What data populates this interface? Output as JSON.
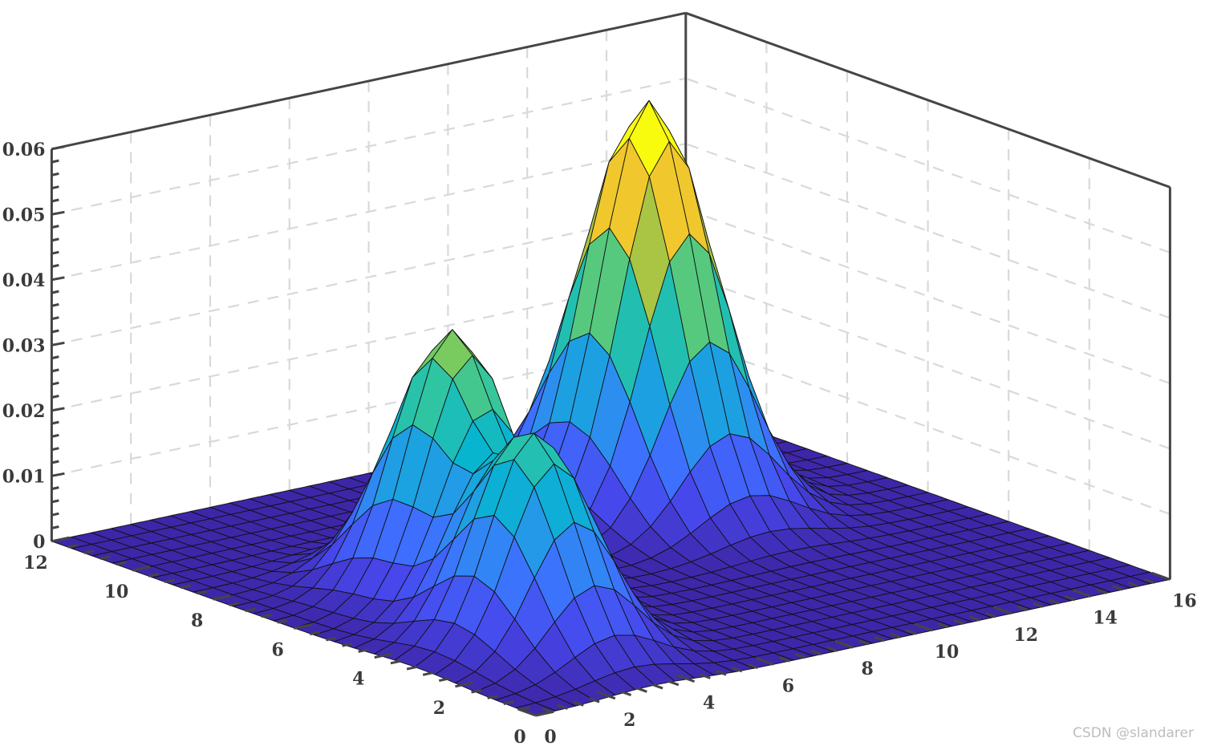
{
  "chart_data": {
    "type": "surface",
    "title": "",
    "xlabel": "",
    "ylabel": "",
    "zlabel": "",
    "xlim": [
      0,
      16
    ],
    "ylim": [
      0,
      12
    ],
    "zlim": [
      0,
      0.06
    ],
    "grid": true,
    "colormap": "parula",
    "x_ticks": [
      "0",
      "2",
      "4",
      "6",
      "8",
      "10",
      "12",
      "14",
      "16"
    ],
    "y_ticks": [
      "0",
      "2",
      "4",
      "6",
      "8",
      "10",
      "12"
    ],
    "z_ticks": [
      "0",
      "0.01",
      "0.02",
      "0.03",
      "0.04",
      "0.05",
      "0.06"
    ],
    "grid_resolution": {
      "x_step": 0.5,
      "y_step": 0.5
    },
    "surface_components": [
      {
        "center_x": 3,
        "center_y": 3,
        "peak_z": 0.032,
        "sigma_x": 1.1,
        "sigma_y": 1.1
      },
      {
        "center_x": 4,
        "center_y": 6,
        "peak_z": 0.04,
        "sigma_x": 1.1,
        "sigma_y": 1.1
      },
      {
        "center_x": 11,
        "center_y": 8,
        "peak_z": 0.062,
        "sigma_x": 1.2,
        "sigma_y": 1.2
      }
    ],
    "colors": {
      "axis": "#454545",
      "grid": "#d9d9d9",
      "edge": "#111111"
    }
  },
  "watermark": "CSDN @slandarer"
}
